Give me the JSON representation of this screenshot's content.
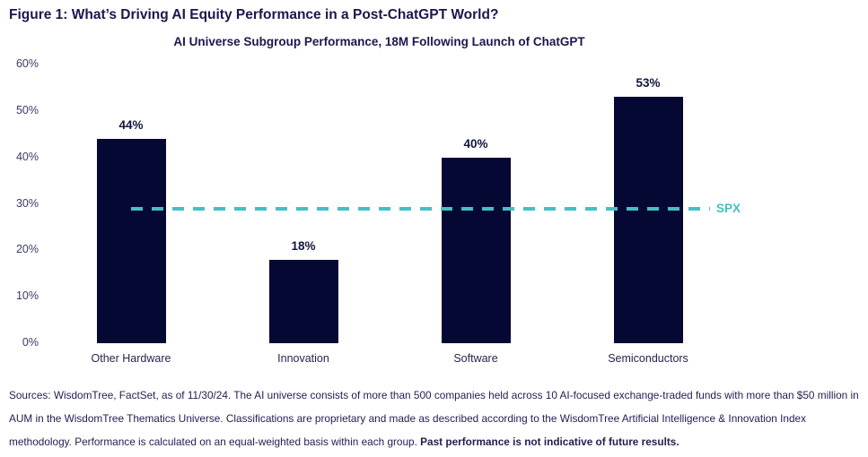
{
  "header": {
    "title": "Figure 1: What’s Driving AI Equity Performance in a Post-ChatGPT World?"
  },
  "chart_data": {
    "type": "bar",
    "title": "AI Universe Subgroup Performance, 18M Following Launch of ChatGPT",
    "categories": [
      "Other Hardware",
      "Innovation",
      "Software",
      "Semiconductors"
    ],
    "values": [
      44,
      18,
      40,
      53
    ],
    "value_labels": [
      "44%",
      "18%",
      "40%",
      "53%"
    ],
    "ylim": [
      0,
      60
    ],
    "yticks": [
      "0%",
      "10%",
      "20%",
      "30%",
      "40%",
      "50%",
      "60%"
    ],
    "grid": false,
    "legend_position": "none",
    "bar_color": "#050833",
    "benchmark": {
      "label": "SPX",
      "value": 29,
      "color": "#41c1c4",
      "style": "dashed"
    }
  },
  "sources": {
    "lines": [
      "Sources: WisdomTree, FactSet, as of 11/30/24. The AI universe consists of more than 500 companies held across 10 AI-focused exchange-traded funds with more than $50 million in",
      "AUM in the WisdomTree Thematics Universe. Classifications are proprietary and made as described according to the WisdomTree Artificial Intelligence & Innovation Index",
      "methodology. Performance is calculated on an equal-weighted basis within each group. "
    ],
    "bold": "Past performance is not indicative of future results."
  }
}
